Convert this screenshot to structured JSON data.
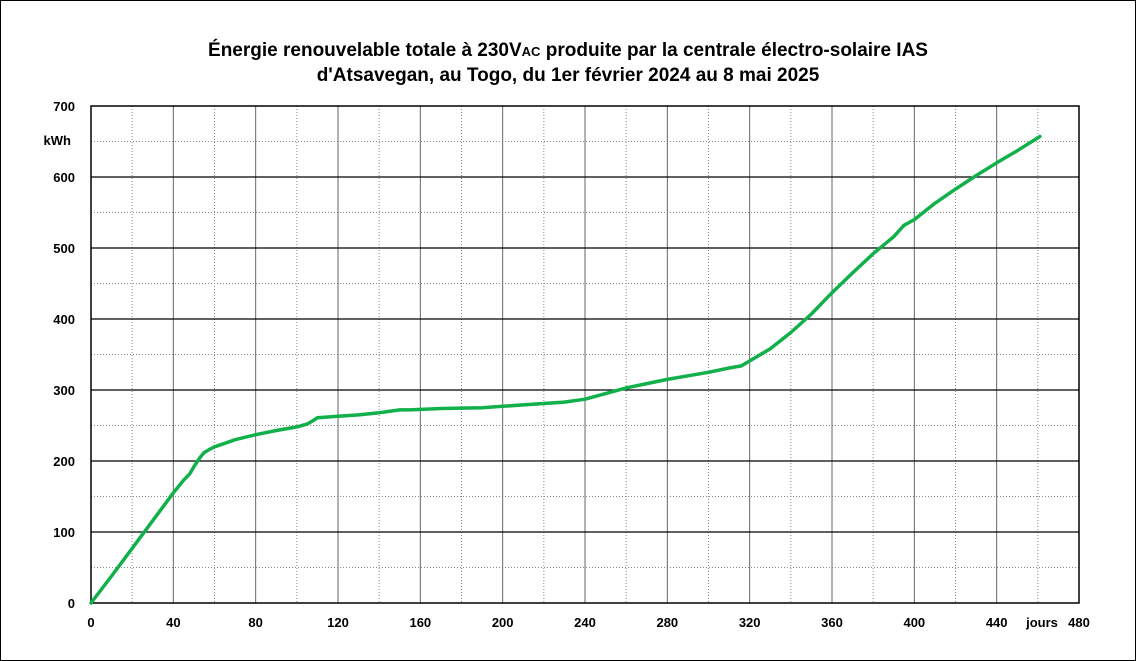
{
  "chart_data": {
    "type": "line",
    "title_line1_pre": "Énergie renouvelable totale à 230V",
    "title_line1_sub": "AC",
    "title_line1_post": " produite par la centrale  électro-solaire IAS",
    "title_line2": "d'Atsavegan, au Togo, du 1er février 2024 au 8 mai 2025",
    "xlabel": "jours",
    "ylabel": "kWh",
    "xlim": [
      0,
      480
    ],
    "ylim": [
      0,
      700
    ],
    "x_ticks": [
      0,
      40,
      80,
      120,
      160,
      200,
      240,
      280,
      320,
      360,
      400,
      440,
      480
    ],
    "x_tick_labels": [
      "0",
      "40",
      "80",
      "120",
      "160",
      "200",
      "240",
      "280",
      "320",
      "360",
      "400",
      "440",
      "480"
    ],
    "y_ticks": [
      0,
      100,
      200,
      300,
      400,
      500,
      600,
      700
    ],
    "y_tick_labels": [
      "0",
      "100",
      "200",
      "300",
      "400",
      "500",
      "600",
      "700"
    ],
    "grid": true,
    "line_color": "#12b04a",
    "series": [
      {
        "x": [
          0,
          10,
          20,
          30,
          40,
          45,
          48,
          50,
          53,
          55,
          58,
          60,
          65,
          70,
          80,
          90,
          100,
          105,
          108,
          110,
          120,
          130,
          140,
          150,
          155,
          170,
          190,
          200,
          210,
          220,
          230,
          240,
          250,
          260,
          270,
          280,
          290,
          300,
          310,
          316,
          320,
          330,
          340,
          350,
          360,
          370,
          380,
          390,
          395,
          400,
          410,
          420,
          430,
          440,
          450,
          461
        ],
        "y": [
          0,
          38,
          77,
          116,
          155,
          173,
          182,
          192,
          205,
          212,
          217,
          220,
          225,
          230,
          237,
          243,
          248,
          252,
          257,
          261,
          263,
          265,
          268,
          272,
          272,
          274,
          275,
          277,
          279,
          281,
          283,
          287,
          295,
          303,
          309,
          315,
          320,
          325,
          331,
          334,
          341,
          358,
          381,
          407,
          437,
          465,
          492,
          516,
          532,
          540,
          563,
          583,
          602,
          620,
          637,
          657
        ]
      }
    ]
  }
}
